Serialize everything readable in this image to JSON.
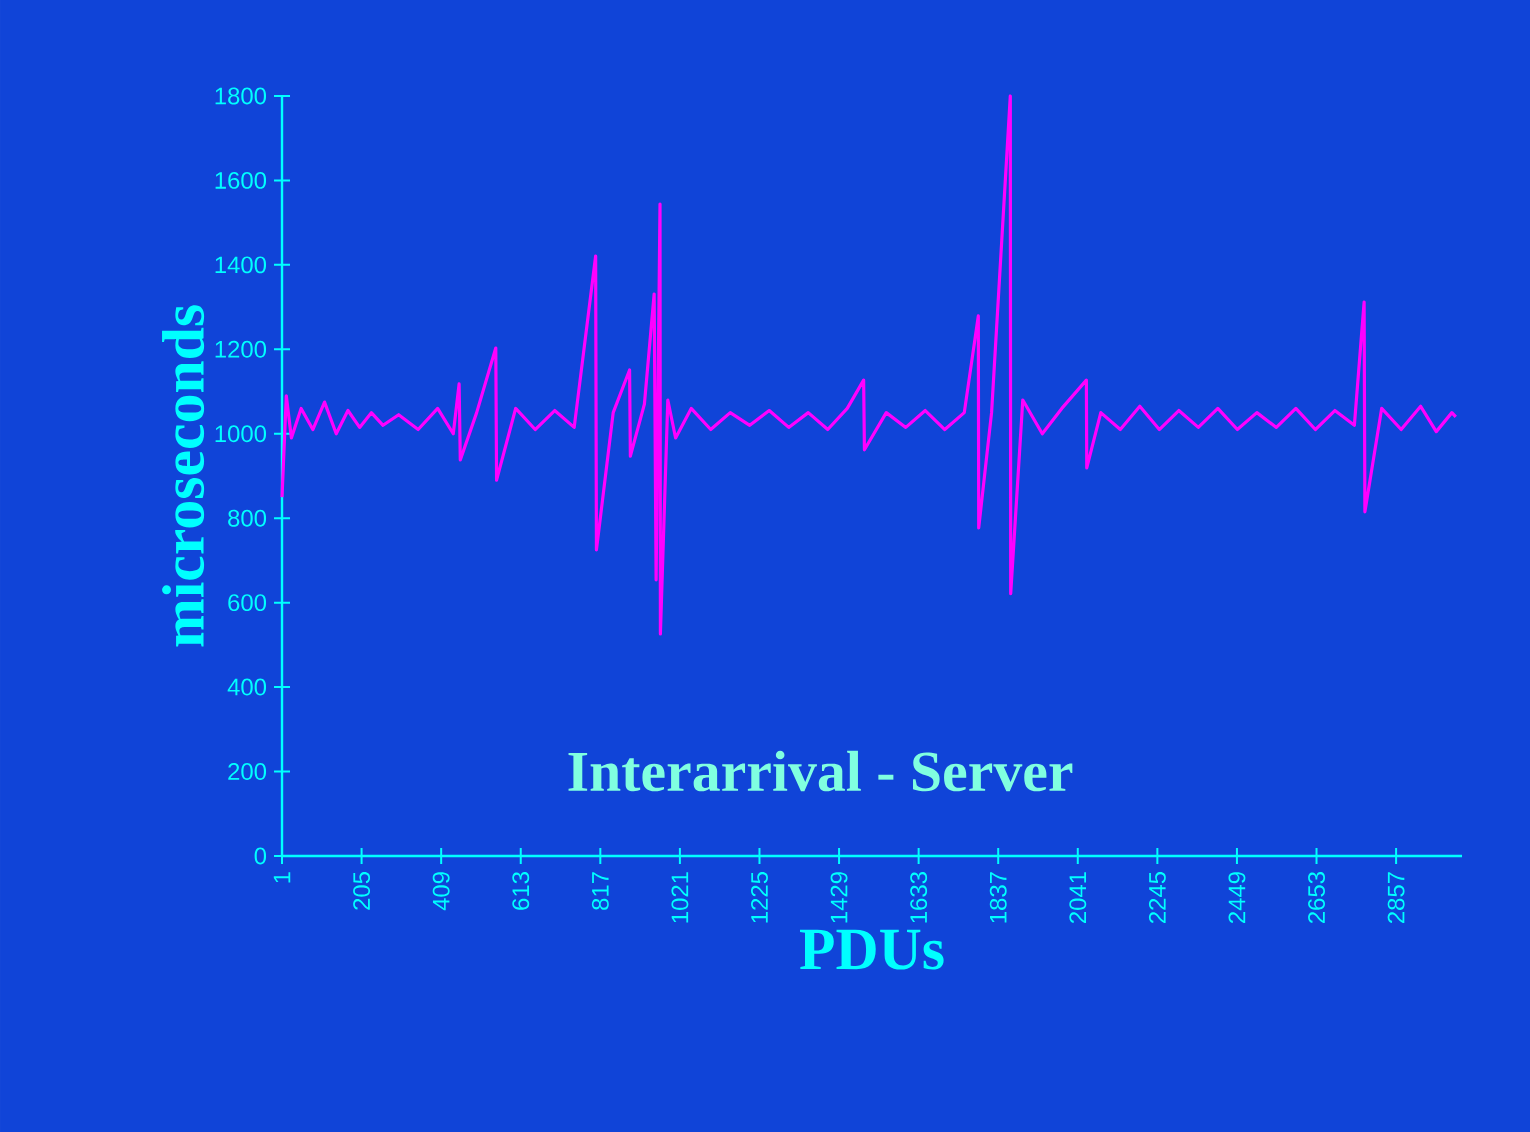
{
  "chart_data": {
    "type": "line",
    "title": "Interarrival - Server",
    "xlabel": "PDUs",
    "ylabel": "microseconds",
    "x": [
      1,
      12,
      25,
      50,
      80,
      110,
      140,
      170,
      200,
      230,
      260,
      300,
      350,
      400,
      440,
      455,
      458,
      500,
      549,
      551,
      600,
      650,
      700,
      750,
      805,
      807,
      850,
      892,
      894,
      930,
      955,
      960,
      970,
      971,
      990,
      1010,
      1050,
      1100,
      1150,
      1200,
      1250,
      1300,
      1350,
      1400,
      1450,
      1492,
      1494,
      1550,
      1600,
      1650,
      1700,
      1750,
      1786,
      1787,
      1820,
      1868,
      1869,
      1900,
      1950,
      2000,
      2063,
      2064,
      2100,
      2150,
      2200,
      2250,
      2300,
      2350,
      2400,
      2450,
      2500,
      2550,
      2600,
      2650,
      2700,
      2750,
      2775,
      2777,
      2820,
      2870,
      2920,
      2960,
      3000,
      3010
    ],
    "series": [
      {
        "color": "#ff00ff",
        "values": [
          850,
          1090,
          990,
          1060,
          1010,
          1075,
          1000,
          1055,
          1015,
          1050,
          1020,
          1045,
          1010,
          1060,
          1000,
          1118,
          938,
          1050,
          1203,
          890,
          1060,
          1010,
          1055,
          1015,
          1421,
          725,
          1050,
          1151,
          947,
          1070,
          1331,
          654,
          1544,
          526,
          1080,
          990,
          1060,
          1010,
          1050,
          1020,
          1055,
          1015,
          1050,
          1010,
          1060,
          1127,
          962,
          1050,
          1015,
          1055,
          1010,
          1050,
          1279,
          777,
          1050,
          1800,
          621,
          1080,
          1000,
          1060,
          1127,
          919,
          1050,
          1010,
          1065,
          1010,
          1055,
          1015,
          1060,
          1010,
          1050,
          1015,
          1060,
          1010,
          1055,
          1020,
          1312,
          815,
          1060,
          1010,
          1065,
          1005,
          1050,
          1040
        ]
      }
    ],
    "xlim": [
      1,
      3026
    ],
    "ylim": [
      0,
      1800
    ],
    "xticks": [
      1,
      205,
      409,
      613,
      817,
      1021,
      1225,
      1429,
      1633,
      1837,
      2041,
      2245,
      2449,
      2653,
      2857
    ],
    "yticks": [
      0,
      200,
      400,
      600,
      800,
      1000,
      1200,
      1400,
      1600,
      1800
    ]
  }
}
